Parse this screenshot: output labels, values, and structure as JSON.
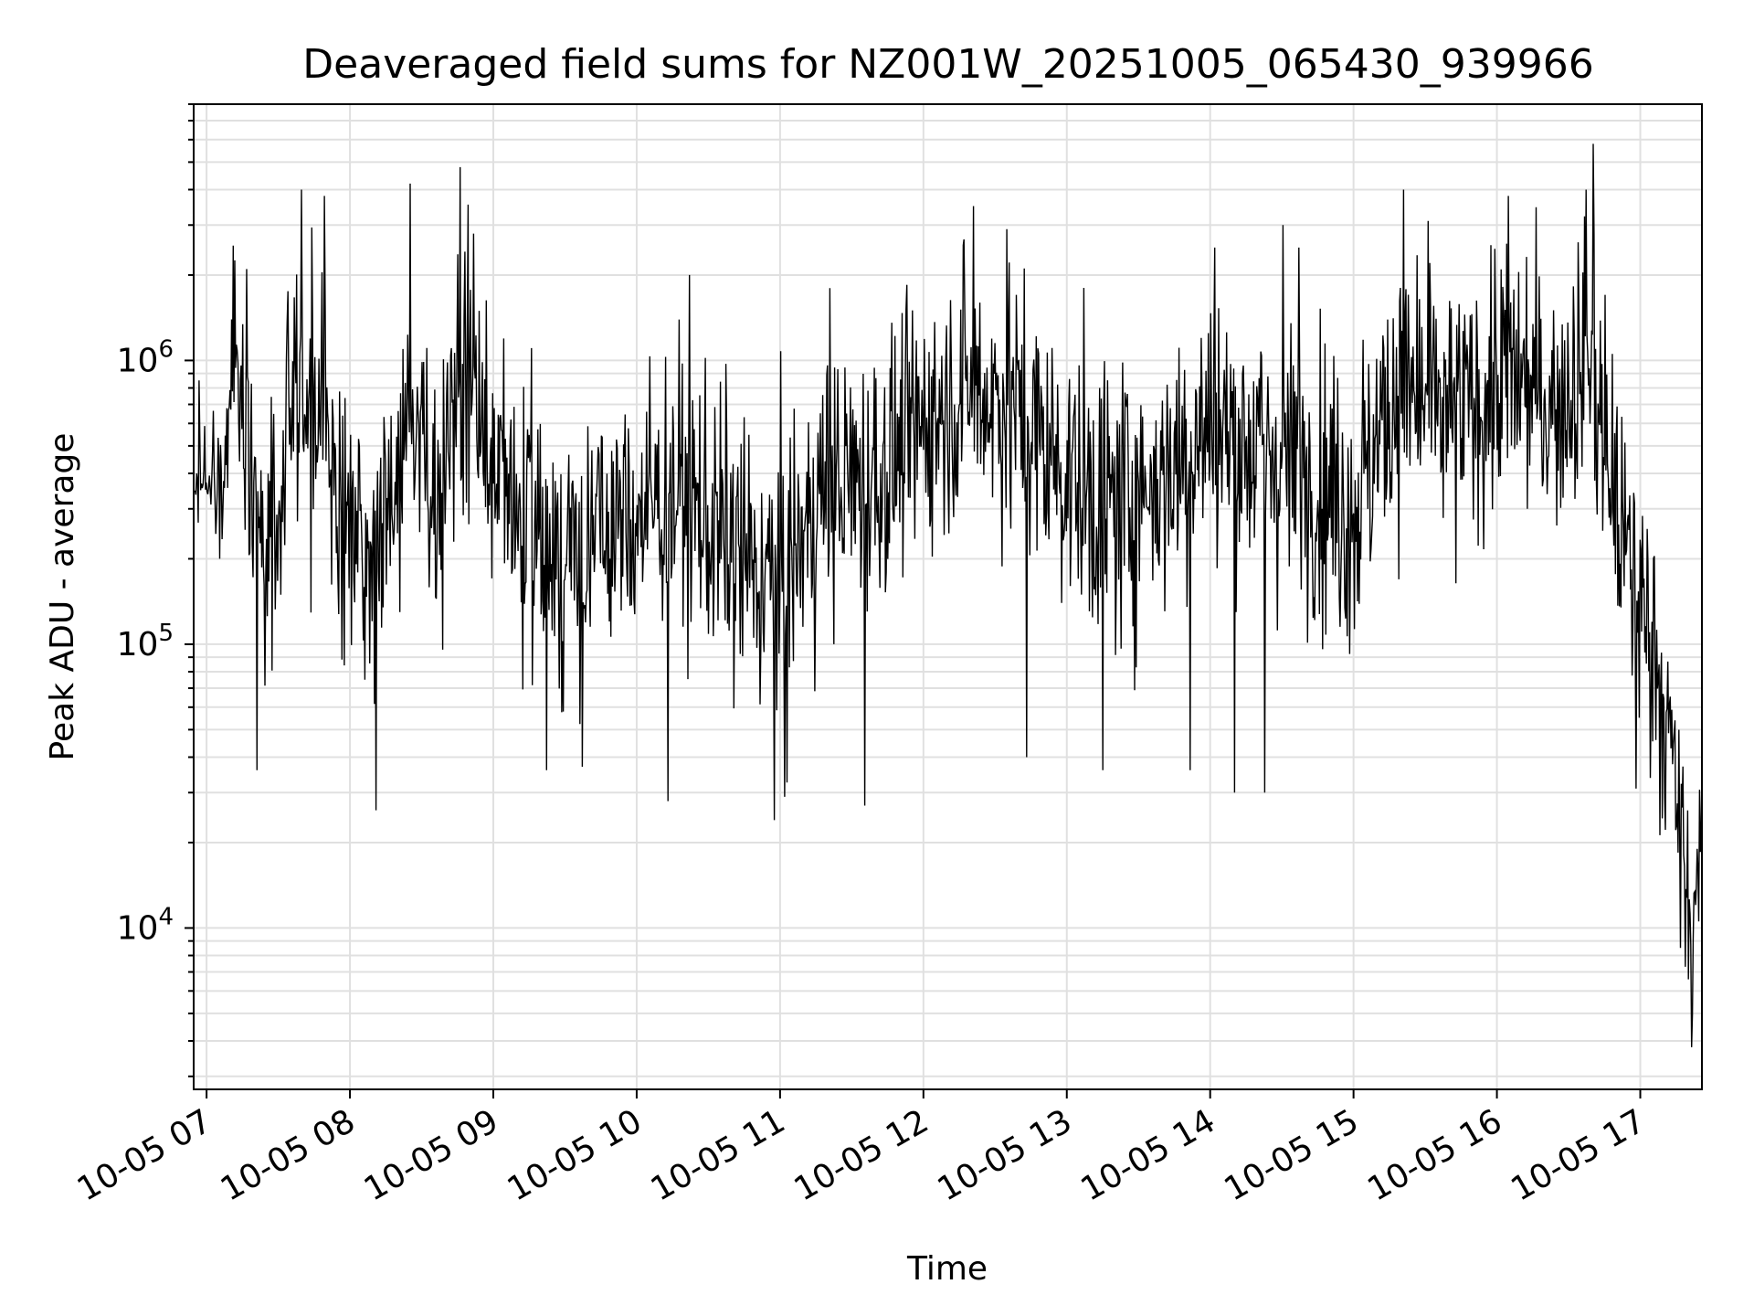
{
  "chart_data": {
    "type": "line",
    "title": "Deaveraged field sums for NZ001W_20251005_065430_939966",
    "xlabel": "Time",
    "ylabel": "Peak ADU - average",
    "yscale": "log",
    "ylim": [
      2700,
      8000000
    ],
    "xlim_hours": [
      6.91,
      17.43
    ],
    "grid": true,
    "colors": {
      "line": "#000000",
      "grid": "#e0e0e0",
      "axes": "#000000"
    },
    "x_ticks": [
      {
        "hour": 7,
        "label": "10-05 07"
      },
      {
        "hour": 8,
        "label": "10-05 08"
      },
      {
        "hour": 9,
        "label": "10-05 09"
      },
      {
        "hour": 10,
        "label": "10-05 10"
      },
      {
        "hour": 11,
        "label": "10-05 11"
      },
      {
        "hour": 12,
        "label": "10-05 12"
      },
      {
        "hour": 13,
        "label": "10-05 13"
      },
      {
        "hour": 14,
        "label": "10-05 14"
      },
      {
        "hour": 15,
        "label": "10-05 15"
      },
      {
        "hour": 16,
        "label": "10-05 16"
      },
      {
        "hour": 17,
        "label": "10-05 17"
      }
    ],
    "y_ticks": [
      {
        "value": 10000,
        "base": "10",
        "exp": "4"
      },
      {
        "value": 100000,
        "base": "10",
        "exp": "5"
      },
      {
        "value": 1000000,
        "base": "10",
        "exp": "6"
      }
    ],
    "series": [
      {
        "name": "Peak ADU - average",
        "envelope": [
          {
            "hour": 6.92,
            "mean": 400000,
            "spread": 0.15
          },
          {
            "hour": 7.1,
            "mean": 350000,
            "spread": 0.25
          },
          {
            "hour": 7.2,
            "mean": 1100000,
            "spread": 0.25
          },
          {
            "hour": 7.35,
            "mean": 250000,
            "spread": 0.45
          },
          {
            "hour": 7.5,
            "mean": 250000,
            "spread": 0.4
          },
          {
            "hour": 7.65,
            "mean": 1000000,
            "spread": 0.4
          },
          {
            "hour": 7.8,
            "mean": 600000,
            "spread": 0.4
          },
          {
            "hour": 8.0,
            "mean": 200000,
            "spread": 0.45
          },
          {
            "hour": 8.2,
            "mean": 250000,
            "spread": 0.4
          },
          {
            "hour": 8.4,
            "mean": 600000,
            "spread": 0.4
          },
          {
            "hour": 8.6,
            "mean": 300000,
            "spread": 0.4
          },
          {
            "hour": 8.8,
            "mean": 1000000,
            "spread": 0.45
          },
          {
            "hour": 9.0,
            "mean": 400000,
            "spread": 0.4
          },
          {
            "hour": 9.4,
            "mean": 200000,
            "spread": 0.4
          },
          {
            "hour": 9.8,
            "mean": 250000,
            "spread": 0.4
          },
          {
            "hour": 10.3,
            "mean": 350000,
            "spread": 0.4
          },
          {
            "hour": 10.8,
            "mean": 180000,
            "spread": 0.45
          },
          {
            "hour": 11.0,
            "mean": 150000,
            "spread": 0.45
          },
          {
            "hour": 11.3,
            "mean": 350000,
            "spread": 0.4
          },
          {
            "hour": 11.7,
            "mean": 400000,
            "spread": 0.4
          },
          {
            "hour": 12.0,
            "mean": 600000,
            "spread": 0.35
          },
          {
            "hour": 12.3,
            "mean": 800000,
            "spread": 0.4
          },
          {
            "hour": 12.6,
            "mean": 700000,
            "spread": 0.4
          },
          {
            "hour": 13.0,
            "mean": 400000,
            "spread": 0.4
          },
          {
            "hour": 13.3,
            "mean": 300000,
            "spread": 0.45
          },
          {
            "hour": 13.7,
            "mean": 400000,
            "spread": 0.4
          },
          {
            "hour": 14.0,
            "mean": 600000,
            "spread": 0.4
          },
          {
            "hour": 14.3,
            "mean": 500000,
            "spread": 0.4
          },
          {
            "hour": 14.7,
            "mean": 400000,
            "spread": 0.4
          },
          {
            "hour": 15.0,
            "mean": 300000,
            "spread": 0.45
          },
          {
            "hour": 15.3,
            "mean": 800000,
            "spread": 0.4
          },
          {
            "hour": 15.7,
            "mean": 600000,
            "spread": 0.4
          },
          {
            "hour": 16.1,
            "mean": 900000,
            "spread": 0.4
          },
          {
            "hour": 16.4,
            "mean": 700000,
            "spread": 0.4
          },
          {
            "hour": 16.65,
            "mean": 1000000,
            "spread": 0.4
          },
          {
            "hour": 16.9,
            "mean": 200000,
            "spread": 0.4
          },
          {
            "hour": 17.1,
            "mean": 100000,
            "spread": 0.4
          },
          {
            "hour": 17.25,
            "mean": 30000,
            "spread": 0.35
          },
          {
            "hour": 17.35,
            "mean": 10000,
            "spread": 0.3
          },
          {
            "hour": 17.43,
            "mean": 25000,
            "spread": 0.25
          }
        ],
        "points": [
          {
            "hour": 6.95,
            "value": 850000
          },
          {
            "hour": 7.28,
            "value": 2100000
          },
          {
            "hour": 7.35,
            "value": 36000
          },
          {
            "hour": 7.66,
            "value": 4000000
          },
          {
            "hour": 7.82,
            "value": 3800000
          },
          {
            "hour": 8.18,
            "value": 26000
          },
          {
            "hour": 8.42,
            "value": 4200000
          },
          {
            "hour": 8.77,
            "value": 4800000
          },
          {
            "hour": 8.86,
            "value": 2800000
          },
          {
            "hour": 9.37,
            "value": 36000
          },
          {
            "hour": 9.62,
            "value": 37000
          },
          {
            "hour": 10.22,
            "value": 28000
          },
          {
            "hour": 10.37,
            "value": 2000000
          },
          {
            "hour": 10.96,
            "value": 24000
          },
          {
            "hour": 11.03,
            "value": 29000
          },
          {
            "hour": 11.35,
            "value": 1800000
          },
          {
            "hour": 11.59,
            "value": 27000
          },
          {
            "hour": 12.35,
            "value": 3500000
          },
          {
            "hour": 12.58,
            "value": 2900000
          },
          {
            "hour": 12.72,
            "value": 40000
          },
          {
            "hour": 13.25,
            "value": 36000
          },
          {
            "hour": 13.86,
            "value": 36000
          },
          {
            "hour": 14.03,
            "value": 2500000
          },
          {
            "hour": 14.17,
            "value": 30000
          },
          {
            "hour": 14.38,
            "value": 30000
          },
          {
            "hour": 14.51,
            "value": 3000000
          },
          {
            "hour": 14.62,
            "value": 2500000
          },
          {
            "hour": 15.35,
            "value": 4000000
          },
          {
            "hour": 15.52,
            "value": 3100000
          },
          {
            "hour": 16.08,
            "value": 3800000
          },
          {
            "hour": 16.62,
            "value": 4000000
          },
          {
            "hour": 16.67,
            "value": 5800000
          },
          {
            "hour": 16.97,
            "value": 31000
          },
          {
            "hour": 17.28,
            "value": 8500
          },
          {
            "hour": 17.36,
            "value": 3800
          },
          {
            "hour": 17.43,
            "value": 37000
          }
        ]
      }
    ]
  }
}
